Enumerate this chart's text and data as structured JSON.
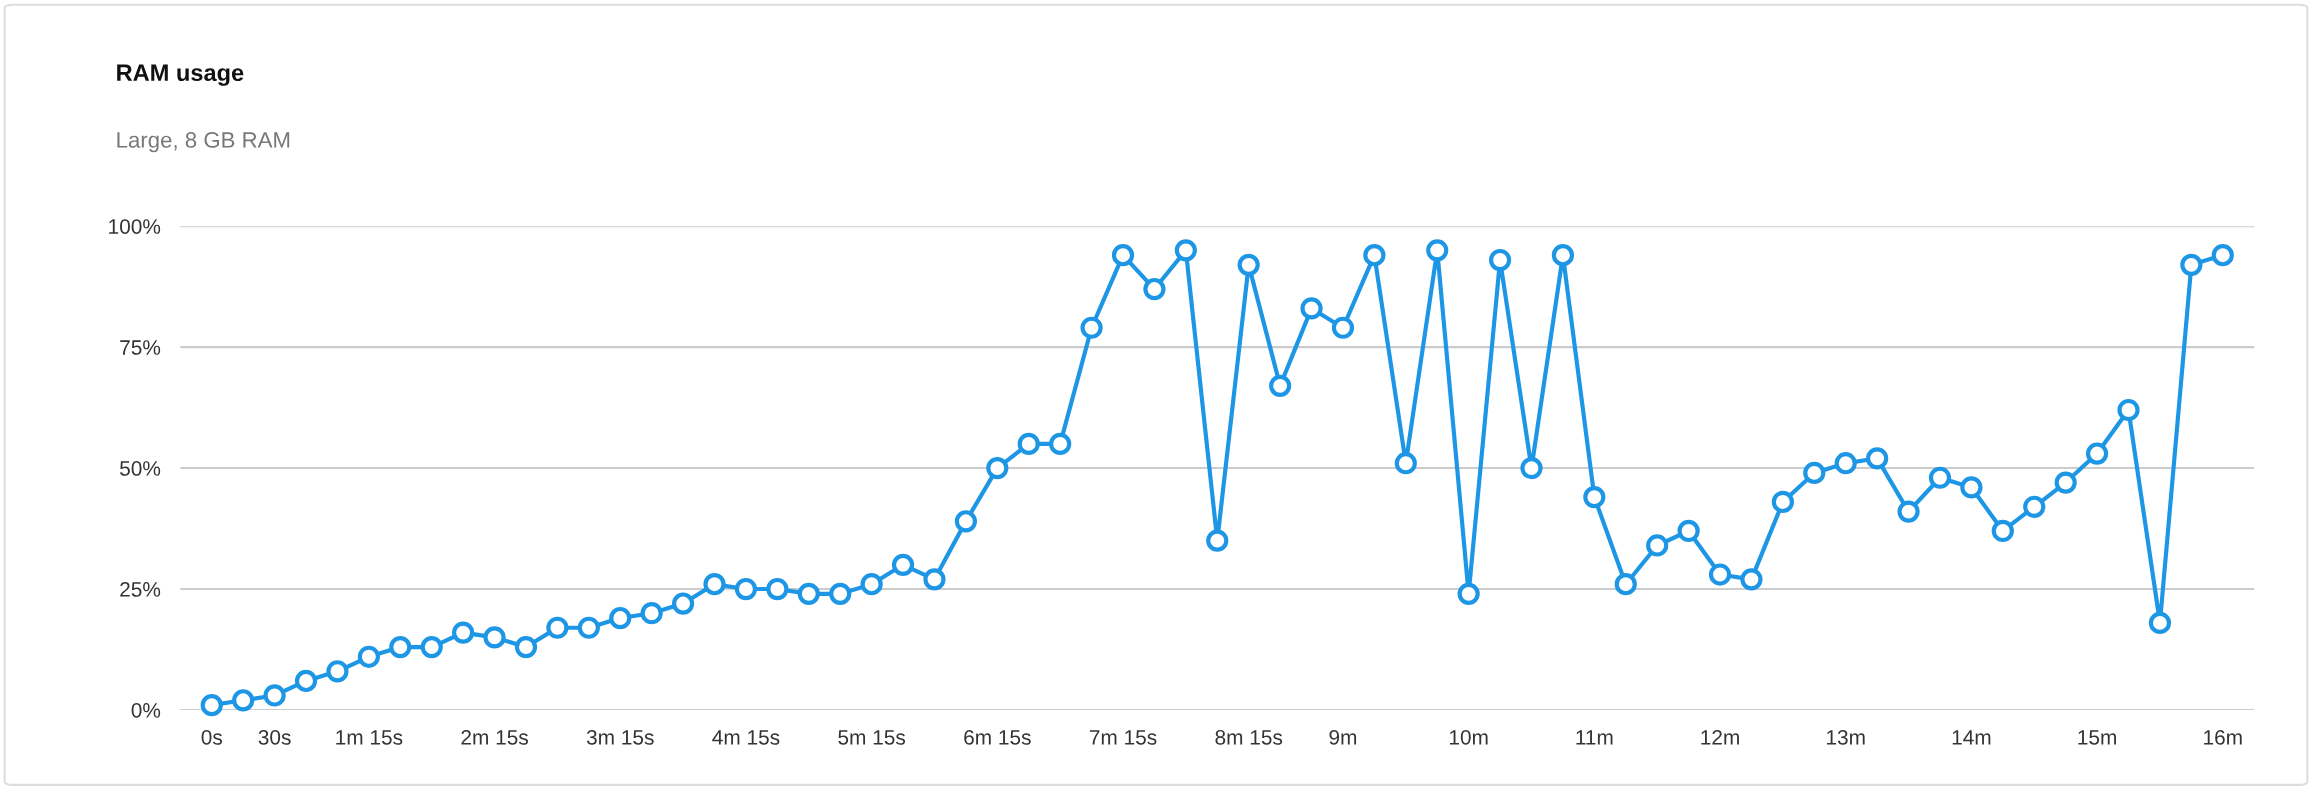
{
  "chart_data": {
    "type": "line",
    "title": "RAM usage",
    "subtitle": "Large, 8 GB RAM",
    "categories": [
      "0s",
      null,
      "30s",
      null,
      null,
      "1m 15s",
      null,
      null,
      null,
      "2m 15s",
      null,
      null,
      null,
      "3m 15s",
      null,
      null,
      null,
      "4m 15s",
      null,
      null,
      null,
      "5m 15s",
      null,
      null,
      null,
      "6m 15s",
      null,
      null,
      null,
      "7m 15s",
      null,
      null,
      null,
      "8m 15s",
      null,
      null,
      "9m",
      null,
      null,
      null,
      "10m",
      null,
      null,
      null,
      "11m",
      null,
      null,
      null,
      "12m",
      null,
      null,
      null,
      "13m",
      null,
      null,
      null,
      "14m",
      null,
      null,
      null,
      "15m",
      null,
      null,
      null,
      "16m"
    ],
    "series": [
      {
        "color": "#1e96e6",
        "values": [
          1,
          2,
          3,
          6,
          8,
          11,
          13,
          13,
          16,
          15,
          13,
          17,
          17,
          19,
          20,
          22,
          26,
          25,
          25,
          24,
          24,
          26,
          30,
          27,
          39,
          50,
          55,
          55,
          79,
          94,
          87,
          95,
          35,
          92,
          67,
          83,
          79,
          94,
          51,
          95,
          24,
          93,
          50,
          94,
          44,
          26,
          34,
          37,
          28,
          27,
          43,
          49,
          51,
          52,
          41,
          48,
          46,
          37,
          42,
          47,
          53,
          62,
          18,
          92,
          94
        ]
      }
    ],
    "ylim": [
      0,
      100
    ],
    "yticks": [
      {
        "value": 0,
        "label": "0%"
      },
      {
        "value": 25,
        "label": "25%"
      },
      {
        "value": 50,
        "label": "50%"
      },
      {
        "value": 75,
        "label": "75%"
      },
      {
        "value": 100,
        "label": "100%"
      }
    ],
    "grid": "y",
    "marker": "circle",
    "line_style": "solid"
  }
}
